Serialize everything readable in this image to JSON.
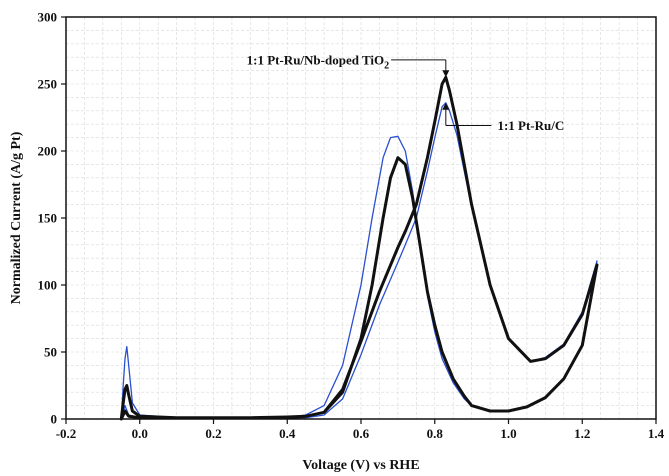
{
  "chart_data": {
    "type": "line",
    "title": "",
    "xlabel": "Voltage (V) vs RHE",
    "ylabel": "Normalized Current (A/g Pt)",
    "xlim": [
      -0.2,
      1.4
    ],
    "ylim": [
      0,
      300
    ],
    "xticks": [
      -0.2,
      0,
      0.2,
      0.4,
      0.6,
      0.8,
      1.0,
      1.2,
      1.4
    ],
    "xtick_labels": [
      "-0.2",
      "0.0",
      "0.2",
      "0.4",
      "0.6",
      "0.8",
      "1.0",
      "1.2",
      "1.4"
    ],
    "yticks": [
      0,
      50,
      100,
      150,
      200,
      250,
      300
    ],
    "ytick_labels": [
      "0",
      "50",
      "100",
      "150",
      "200",
      "250",
      "300"
    ],
    "grid": true,
    "legend": "none",
    "series": [
      {
        "name": "1:1 Pt-Ru/Nb-doped TiO2",
        "color": "#111111",
        "values": [
          [
            -0.05,
            0
          ],
          [
            -0.045,
            12
          ],
          [
            -0.04,
            22
          ],
          [
            -0.035,
            25
          ],
          [
            -0.03,
            18
          ],
          [
            -0.02,
            6
          ],
          [
            0.0,
            2
          ],
          [
            0.1,
            1
          ],
          [
            0.2,
            1
          ],
          [
            0.3,
            1
          ],
          [
            0.4,
            1.5
          ],
          [
            0.45,
            2
          ],
          [
            0.5,
            5
          ],
          [
            0.55,
            20
          ],
          [
            0.6,
            60
          ],
          [
            0.63,
            100
          ],
          [
            0.66,
            150
          ],
          [
            0.68,
            180
          ],
          [
            0.7,
            195
          ],
          [
            0.72,
            190
          ],
          [
            0.74,
            165
          ],
          [
            0.76,
            130
          ],
          [
            0.78,
            95
          ],
          [
            0.8,
            70
          ],
          [
            0.82,
            50
          ],
          [
            0.85,
            30
          ],
          [
            0.88,
            17
          ],
          [
            0.9,
            10
          ],
          [
            0.95,
            6
          ],
          [
            1.0,
            6
          ],
          [
            1.05,
            9
          ],
          [
            1.1,
            16
          ],
          [
            1.15,
            30
          ],
          [
            1.2,
            55
          ],
          [
            1.24,
            115
          ],
          [
            1.24,
            115
          ],
          [
            1.2,
            78
          ],
          [
            1.15,
            55
          ],
          [
            1.1,
            45
          ],
          [
            1.06,
            43
          ],
          [
            1.0,
            60
          ],
          [
            0.95,
            100
          ],
          [
            0.9,
            160
          ],
          [
            0.86,
            220
          ],
          [
            0.84,
            245
          ],
          [
            0.83,
            255
          ],
          [
            0.82,
            250
          ],
          [
            0.8,
            222
          ],
          [
            0.78,
            195
          ],
          [
            0.75,
            160
          ],
          [
            0.72,
            140
          ],
          [
            0.7,
            128
          ],
          [
            0.65,
            95
          ],
          [
            0.6,
            58
          ],
          [
            0.55,
            22
          ],
          [
            0.5,
            5
          ],
          [
            0.45,
            2
          ],
          [
            0.4,
            1
          ],
          [
            0.2,
            1
          ],
          [
            0.0,
            1
          ],
          [
            -0.03,
            2
          ],
          [
            -0.04,
            6
          ],
          [
            -0.05,
            0
          ]
        ]
      },
      {
        "name": "1:1 Pt-Ru/C",
        "color": "#2a4fd0",
        "values": [
          [
            -0.05,
            0
          ],
          [
            -0.045,
            25
          ],
          [
            -0.04,
            45
          ],
          [
            -0.035,
            54
          ],
          [
            -0.03,
            40
          ],
          [
            -0.02,
            12
          ],
          [
            0.0,
            3
          ],
          [
            0.1,
            1
          ],
          [
            0.2,
            1
          ],
          [
            0.3,
            1
          ],
          [
            0.4,
            1
          ],
          [
            0.45,
            3
          ],
          [
            0.5,
            10
          ],
          [
            0.55,
            40
          ],
          [
            0.6,
            100
          ],
          [
            0.63,
            150
          ],
          [
            0.66,
            195
          ],
          [
            0.68,
            210
          ],
          [
            0.7,
            211
          ],
          [
            0.72,
            200
          ],
          [
            0.74,
            170
          ],
          [
            0.76,
            130
          ],
          [
            0.78,
            92
          ],
          [
            0.8,
            65
          ],
          [
            0.82,
            45
          ],
          [
            0.85,
            27
          ],
          [
            0.88,
            15
          ],
          [
            0.9,
            10
          ],
          [
            0.95,
            6
          ],
          [
            1.0,
            6
          ],
          [
            1.05,
            9
          ],
          [
            1.1,
            16
          ],
          [
            1.15,
            30
          ],
          [
            1.2,
            55
          ],
          [
            1.24,
            118
          ],
          [
            1.24,
            118
          ],
          [
            1.2,
            80
          ],
          [
            1.15,
            56
          ],
          [
            1.1,
            46
          ],
          [
            1.06,
            43
          ],
          [
            1.0,
            60
          ],
          [
            0.95,
            100
          ],
          [
            0.9,
            158
          ],
          [
            0.86,
            212
          ],
          [
            0.84,
            230
          ],
          [
            0.83,
            236
          ],
          [
            0.82,
            233
          ],
          [
            0.8,
            210
          ],
          [
            0.78,
            185
          ],
          [
            0.75,
            150
          ],
          [
            0.72,
            130
          ],
          [
            0.7,
            117
          ],
          [
            0.65,
            85
          ],
          [
            0.6,
            48
          ],
          [
            0.55,
            15
          ],
          [
            0.5,
            3
          ],
          [
            0.45,
            1
          ],
          [
            0.4,
            1
          ],
          [
            0.2,
            1
          ],
          [
            0.0,
            1
          ],
          [
            -0.03,
            3
          ],
          [
            -0.04,
            10
          ],
          [
            -0.05,
            0
          ]
        ]
      }
    ],
    "annotations": [
      {
        "text_main": "1:1 Pt-Ru/Nb-doped TiO",
        "text_sub": "2",
        "target_x": 0.83,
        "target_y": 255,
        "label_x": 0.66,
        "label_y": 268,
        "line_to_x": 0.83,
        "line_to_y": 268
      },
      {
        "text_main": "1:1 Pt-Ru/C",
        "text_sub": "",
        "target_x": 0.83,
        "target_y": 236,
        "label_x": 0.97,
        "label_y": 219,
        "line_to_x": 0.83,
        "line_to_y": 219
      }
    ]
  }
}
